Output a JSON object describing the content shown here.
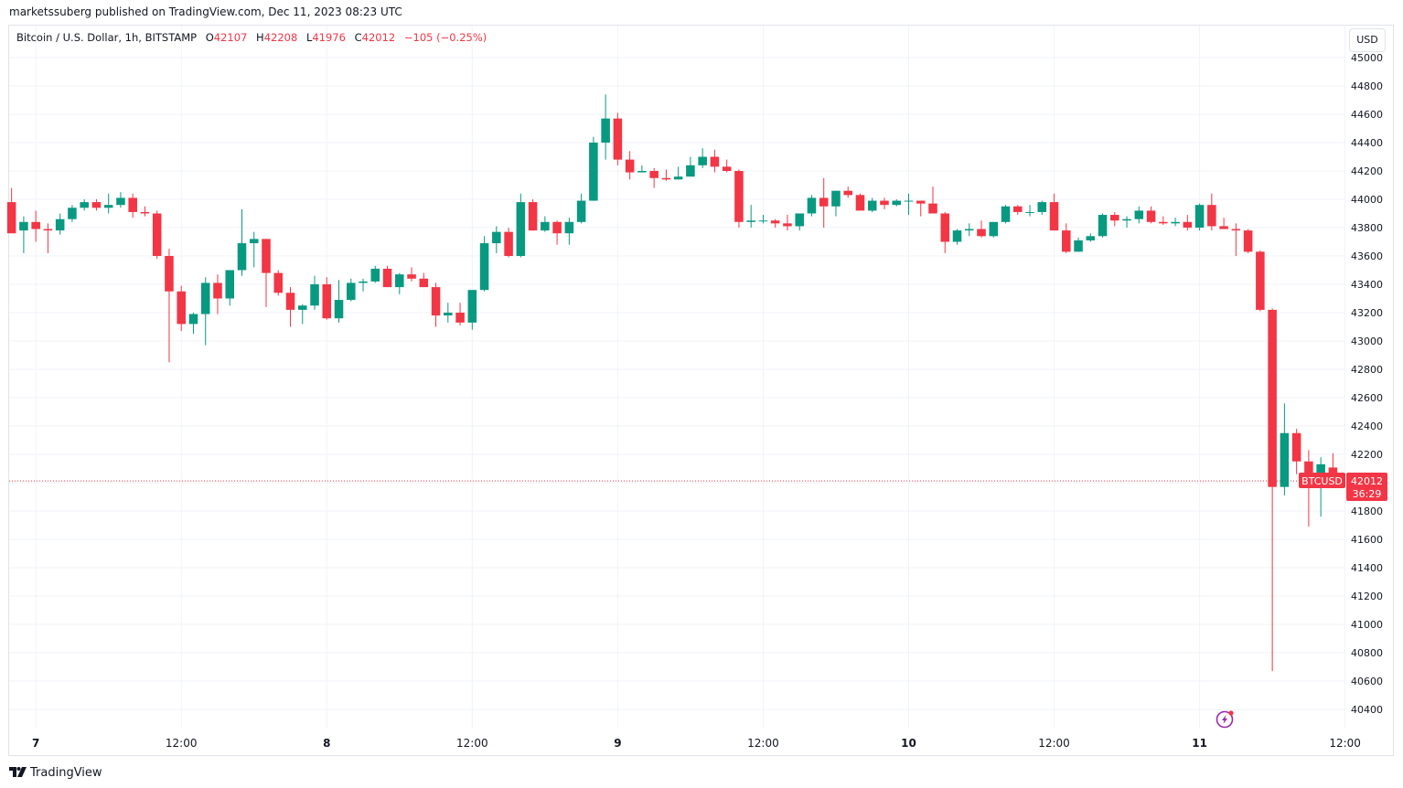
{
  "header": {
    "publisher_line": "marketssuberg published on TradingView.com, Dec 11, 2023 08:23 UTC"
  },
  "symbol": {
    "title": "Bitcoin / U.S. Dollar, 1h, BITSTAMP",
    "o_label": "O",
    "o_value": "42107",
    "h_label": "H",
    "h_value": "42208",
    "l_label": "L",
    "l_value": "41976",
    "c_label": "C",
    "c_value": "42012",
    "change": "−105 (−0.25%)"
  },
  "currency_button": "USD",
  "price_tag": {
    "ticker": "BTCUSD",
    "price": "42012",
    "countdown": "36:29"
  },
  "footer": {
    "brand": "TradingView"
  },
  "colors": {
    "up": "#089981",
    "down": "#f23645",
    "grid": "#f0f3fa",
    "price_line": "#f23645",
    "alert_icon": "#9c27b0"
  },
  "icons": [
    "tradingview-logo-icon",
    "lightning-alert-icon"
  ],
  "chart_data": {
    "type": "candlestick",
    "interval": "1h",
    "y_axis": {
      "ticks": [
        40400,
        40600,
        40800,
        41000,
        41200,
        41400,
        41600,
        41800,
        42000,
        42200,
        42400,
        42600,
        42800,
        43000,
        43200,
        43400,
        43600,
        43800,
        44000,
        44200,
        44400,
        44600,
        44800,
        45000
      ],
      "ylim": [
        40310,
        45000
      ]
    },
    "x_axis": {
      "labels": [
        "7",
        "12:00",
        "8",
        "12:00",
        "9",
        "12:00",
        "10",
        "12:00",
        "11",
        "12:00"
      ],
      "label_hours": [
        0,
        12,
        24,
        36,
        48,
        60,
        72,
        84,
        96,
        108
      ]
    },
    "x_hour_range": [
      -2.2,
      107.8
    ],
    "last_price": 42012,
    "grid": true,
    "candles": [
      {
        "t": -2,
        "o": 43980,
        "h": 44080,
        "l": 43780,
        "c": 43760
      },
      {
        "t": -1,
        "o": 43780,
        "h": 43880,
        "l": 43620,
        "c": 43840
      },
      {
        "t": 0,
        "o": 43840,
        "h": 43920,
        "l": 43700,
        "c": 43790
      },
      {
        "t": 1,
        "o": 43790,
        "h": 43830,
        "l": 43620,
        "c": 43780
      },
      {
        "t": 2,
        "o": 43780,
        "h": 43900,
        "l": 43750,
        "c": 43860
      },
      {
        "t": 3,
        "o": 43860,
        "h": 43960,
        "l": 43840,
        "c": 43940
      },
      {
        "t": 4,
        "o": 43940,
        "h": 44000,
        "l": 43920,
        "c": 43980
      },
      {
        "t": 5,
        "o": 43980,
        "h": 44000,
        "l": 43920,
        "c": 43940
      },
      {
        "t": 6,
        "o": 43940,
        "h": 44040,
        "l": 43900,
        "c": 43960
      },
      {
        "t": 7,
        "o": 43960,
        "h": 44050,
        "l": 43940,
        "c": 44010
      },
      {
        "t": 8,
        "o": 44010,
        "h": 44040,
        "l": 43870,
        "c": 43910
      },
      {
        "t": 9,
        "o": 43910,
        "h": 43950,
        "l": 43880,
        "c": 43900
      },
      {
        "t": 10,
        "o": 43900,
        "h": 43920,
        "l": 43580,
        "c": 43600
      },
      {
        "t": 11,
        "o": 43600,
        "h": 43650,
        "l": 42850,
        "c": 43350
      },
      {
        "t": 12,
        "o": 43350,
        "h": 43390,
        "l": 43070,
        "c": 43120
      },
      {
        "t": 13,
        "o": 43120,
        "h": 43200,
        "l": 43050,
        "c": 43190
      },
      {
        "t": 14,
        "o": 43190,
        "h": 43450,
        "l": 42970,
        "c": 43410
      },
      {
        "t": 15,
        "o": 43410,
        "h": 43470,
        "l": 43190,
        "c": 43300
      },
      {
        "t": 16,
        "o": 43300,
        "h": 43500,
        "l": 43250,
        "c": 43500
      },
      {
        "t": 17,
        "o": 43500,
        "h": 43930,
        "l": 43460,
        "c": 43690
      },
      {
        "t": 18,
        "o": 43690,
        "h": 43770,
        "l": 43520,
        "c": 43720
      },
      {
        "t": 19,
        "o": 43720,
        "h": 43720,
        "l": 43240,
        "c": 43480
      },
      {
        "t": 20,
        "o": 43480,
        "h": 43500,
        "l": 43320,
        "c": 43340
      },
      {
        "t": 21,
        "o": 43340,
        "h": 43380,
        "l": 43100,
        "c": 43220
      },
      {
        "t": 22,
        "o": 43220,
        "h": 43260,
        "l": 43120,
        "c": 43250
      },
      {
        "t": 23,
        "o": 43250,
        "h": 43460,
        "l": 43220,
        "c": 43400
      },
      {
        "t": 24,
        "o": 43400,
        "h": 43450,
        "l": 43150,
        "c": 43160
      },
      {
        "t": 25,
        "o": 43160,
        "h": 43430,
        "l": 43130,
        "c": 43290
      },
      {
        "t": 26,
        "o": 43290,
        "h": 43440,
        "l": 43280,
        "c": 43410
      },
      {
        "t": 27,
        "o": 43410,
        "h": 43440,
        "l": 43350,
        "c": 43420
      },
      {
        "t": 28,
        "o": 43420,
        "h": 43530,
        "l": 43410,
        "c": 43510
      },
      {
        "t": 29,
        "o": 43510,
        "h": 43530,
        "l": 43380,
        "c": 43380
      },
      {
        "t": 30,
        "o": 43380,
        "h": 43480,
        "l": 43330,
        "c": 43470
      },
      {
        "t": 31,
        "o": 43470,
        "h": 43520,
        "l": 43420,
        "c": 43440
      },
      {
        "t": 32,
        "o": 43440,
        "h": 43480,
        "l": 43380,
        "c": 43380
      },
      {
        "t": 33,
        "o": 43380,
        "h": 43410,
        "l": 43100,
        "c": 43180
      },
      {
        "t": 34,
        "o": 43180,
        "h": 43270,
        "l": 43130,
        "c": 43200
      },
      {
        "t": 35,
        "o": 43200,
        "h": 43270,
        "l": 43110,
        "c": 43130
      },
      {
        "t": 36,
        "o": 43130,
        "h": 43360,
        "l": 43080,
        "c": 43360
      },
      {
        "t": 37,
        "o": 43360,
        "h": 43740,
        "l": 43350,
        "c": 43690
      },
      {
        "t": 38,
        "o": 43690,
        "h": 43810,
        "l": 43620,
        "c": 43770
      },
      {
        "t": 39,
        "o": 43770,
        "h": 43800,
        "l": 43590,
        "c": 43600
      },
      {
        "t": 40,
        "o": 43600,
        "h": 44040,
        "l": 43590,
        "c": 43980
      },
      {
        "t": 41,
        "o": 43980,
        "h": 44000,
        "l": 43780,
        "c": 43780
      },
      {
        "t": 42,
        "o": 43780,
        "h": 43880,
        "l": 43770,
        "c": 43840
      },
      {
        "t": 43,
        "o": 43840,
        "h": 43850,
        "l": 43680,
        "c": 43760
      },
      {
        "t": 44,
        "o": 43760,
        "h": 43870,
        "l": 43680,
        "c": 43840
      },
      {
        "t": 45,
        "o": 43840,
        "h": 44040,
        "l": 43830,
        "c": 43990
      },
      {
        "t": 46,
        "o": 43990,
        "h": 44440,
        "l": 43990,
        "c": 44400
      },
      {
        "t": 47,
        "o": 44400,
        "h": 44740,
        "l": 44280,
        "c": 44570
      },
      {
        "t": 48,
        "o": 44570,
        "h": 44610,
        "l": 44240,
        "c": 44280
      },
      {
        "t": 49,
        "o": 44280,
        "h": 44340,
        "l": 44140,
        "c": 44190
      },
      {
        "t": 50,
        "o": 44190,
        "h": 44240,
        "l": 44190,
        "c": 44200
      },
      {
        "t": 51,
        "o": 44200,
        "h": 44220,
        "l": 44080,
        "c": 44150
      },
      {
        "t": 52,
        "o": 44150,
        "h": 44210,
        "l": 44130,
        "c": 44140
      },
      {
        "t": 53,
        "o": 44140,
        "h": 44230,
        "l": 44140,
        "c": 44160
      },
      {
        "t": 54,
        "o": 44160,
        "h": 44300,
        "l": 44170,
        "c": 44240
      },
      {
        "t": 55,
        "o": 44240,
        "h": 44360,
        "l": 44220,
        "c": 44300
      },
      {
        "t": 56,
        "o": 44300,
        "h": 44350,
        "l": 44190,
        "c": 44230
      },
      {
        "t": 57,
        "o": 44230,
        "h": 44280,
        "l": 44190,
        "c": 44200
      },
      {
        "t": 58,
        "o": 44200,
        "h": 44210,
        "l": 43800,
        "c": 43840
      },
      {
        "t": 59,
        "o": 43840,
        "h": 43960,
        "l": 43800,
        "c": 43850
      },
      {
        "t": 60,
        "o": 43850,
        "h": 43890,
        "l": 43830,
        "c": 43850
      },
      {
        "t": 61,
        "o": 43850,
        "h": 43860,
        "l": 43800,
        "c": 43830
      },
      {
        "t": 62,
        "o": 43830,
        "h": 43890,
        "l": 43780,
        "c": 43810
      },
      {
        "t": 63,
        "o": 43810,
        "h": 43880,
        "l": 43780,
        "c": 43900
      },
      {
        "t": 64,
        "o": 43900,
        "h": 44030,
        "l": 43880,
        "c": 44010
      },
      {
        "t": 65,
        "o": 44010,
        "h": 44150,
        "l": 43800,
        "c": 43950
      },
      {
        "t": 66,
        "o": 43950,
        "h": 44060,
        "l": 43880,
        "c": 44060
      },
      {
        "t": 67,
        "o": 44060,
        "h": 44090,
        "l": 44010,
        "c": 44030
      },
      {
        "t": 68,
        "o": 44030,
        "h": 44040,
        "l": 43920,
        "c": 43920
      },
      {
        "t": 69,
        "o": 43920,
        "h": 44010,
        "l": 43910,
        "c": 43990
      },
      {
        "t": 70,
        "o": 43990,
        "h": 44010,
        "l": 43930,
        "c": 43960
      },
      {
        "t": 71,
        "o": 43960,
        "h": 44000,
        "l": 43950,
        "c": 43990
      },
      {
        "t": 72,
        "o": 43990,
        "h": 44040,
        "l": 43890,
        "c": 43990
      },
      {
        "t": 73,
        "o": 43990,
        "h": 43990,
        "l": 43880,
        "c": 43970
      },
      {
        "t": 74,
        "o": 43970,
        "h": 44090,
        "l": 43940,
        "c": 43900
      },
      {
        "t": 75,
        "o": 43900,
        "h": 43910,
        "l": 43620,
        "c": 43700
      },
      {
        "t": 76,
        "o": 43700,
        "h": 43790,
        "l": 43680,
        "c": 43780
      },
      {
        "t": 77,
        "o": 43780,
        "h": 43830,
        "l": 43740,
        "c": 43790
      },
      {
        "t": 78,
        "o": 43790,
        "h": 43850,
        "l": 43730,
        "c": 43740
      },
      {
        "t": 79,
        "o": 43740,
        "h": 43830,
        "l": 43730,
        "c": 43840
      },
      {
        "t": 80,
        "o": 43840,
        "h": 43960,
        "l": 43830,
        "c": 43950
      },
      {
        "t": 81,
        "o": 43950,
        "h": 43960,
        "l": 43890,
        "c": 43910
      },
      {
        "t": 82,
        "o": 43910,
        "h": 43960,
        "l": 43880,
        "c": 43910
      },
      {
        "t": 83,
        "o": 43910,
        "h": 43990,
        "l": 43890,
        "c": 43980
      },
      {
        "t": 84,
        "o": 43980,
        "h": 44040,
        "l": 43790,
        "c": 43780
      },
      {
        "t": 85,
        "o": 43780,
        "h": 43830,
        "l": 43620,
        "c": 43630
      },
      {
        "t": 86,
        "o": 43630,
        "h": 43730,
        "l": 43630,
        "c": 43710
      },
      {
        "t": 87,
        "o": 43710,
        "h": 43760,
        "l": 43700,
        "c": 43740
      },
      {
        "t": 88,
        "o": 43740,
        "h": 43900,
        "l": 43730,
        "c": 43890
      },
      {
        "t": 89,
        "o": 43890,
        "h": 43910,
        "l": 43810,
        "c": 43850
      },
      {
        "t": 90,
        "o": 43850,
        "h": 43880,
        "l": 43800,
        "c": 43860
      },
      {
        "t": 91,
        "o": 43860,
        "h": 43950,
        "l": 43830,
        "c": 43920
      },
      {
        "t": 92,
        "o": 43920,
        "h": 43950,
        "l": 43830,
        "c": 43840
      },
      {
        "t": 93,
        "o": 43840,
        "h": 43880,
        "l": 43820,
        "c": 43830
      },
      {
        "t": 94,
        "o": 43830,
        "h": 43870,
        "l": 43810,
        "c": 43840
      },
      {
        "t": 95,
        "o": 43840,
        "h": 43890,
        "l": 43780,
        "c": 43800
      },
      {
        "t": 96,
        "o": 43800,
        "h": 43970,
        "l": 43780,
        "c": 43960
      },
      {
        "t": 97,
        "o": 43960,
        "h": 44040,
        "l": 43780,
        "c": 43810
      },
      {
        "t": 98,
        "o": 43810,
        "h": 43870,
        "l": 43790,
        "c": 43790
      },
      {
        "t": 99,
        "o": 43790,
        "h": 43830,
        "l": 43600,
        "c": 43780
      },
      {
        "t": 100,
        "o": 43780,
        "h": 43790,
        "l": 43620,
        "c": 43630
      },
      {
        "t": 101,
        "o": 43630,
        "h": 43640,
        "l": 43210,
        "c": 43220
      },
      {
        "t": 102,
        "o": 43220,
        "h": 43230,
        "l": 40670,
        "c": 41970
      },
      {
        "t": 103,
        "o": 41970,
        "h": 42560,
        "l": 41910,
        "c": 42350
      },
      {
        "t": 104,
        "o": 42350,
        "h": 42380,
        "l": 42060,
        "c": 42150
      },
      {
        "t": 105,
        "o": 42150,
        "h": 42230,
        "l": 41690,
        "c": 42070
      },
      {
        "t": 106,
        "o": 42070,
        "h": 42180,
        "l": 41760,
        "c": 42130
      },
      {
        "t": 107,
        "o": 42107,
        "h": 42208,
        "l": 41976,
        "c": 42012
      }
    ]
  }
}
